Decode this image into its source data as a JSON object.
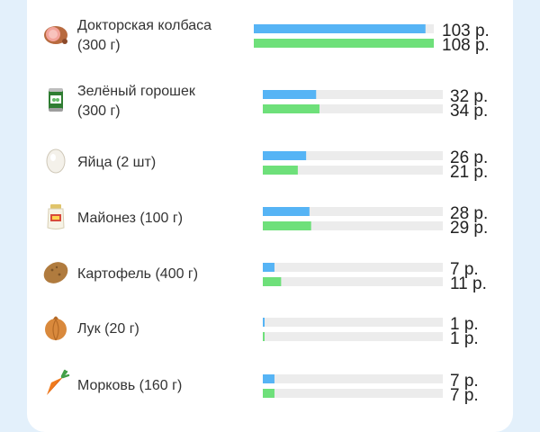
{
  "chart_data": {
    "type": "bar",
    "orientation": "horizontal",
    "currency_suffix": " р.",
    "bar_colors": [
      "#56b4f5",
      "#6ee07a"
    ],
    "track_color": "#ececec",
    "items": [
      {
        "icon": "sausage-icon",
        "name_lines": [
          "Докторская колбаса",
          "(300 г)"
        ],
        "values": [
          103,
          108
        ]
      },
      {
        "icon": "peas-can-icon",
        "name_lines": [
          "Зелёный горошек",
          "(300 г)"
        ],
        "values": [
          32,
          34
        ]
      },
      {
        "icon": "egg-icon",
        "name_lines": [
          "Яйца (2 шт)"
        ],
        "values": [
          26,
          21
        ]
      },
      {
        "icon": "mayonnaise-icon",
        "name_lines": [
          "Майонез (100 г)"
        ],
        "values": [
          28,
          29
        ]
      },
      {
        "icon": "potato-icon",
        "name_lines": [
          "Картофель (400 г)"
        ],
        "values": [
          7,
          11
        ]
      },
      {
        "icon": "onion-icon",
        "name_lines": [
          "Лук (20 г)"
        ],
        "values": [
          1,
          1
        ]
      },
      {
        "icon": "carrot-icon",
        "name_lines": [
          "Морковь (160 г)"
        ],
        "values": [
          7,
          7
        ]
      }
    ]
  }
}
